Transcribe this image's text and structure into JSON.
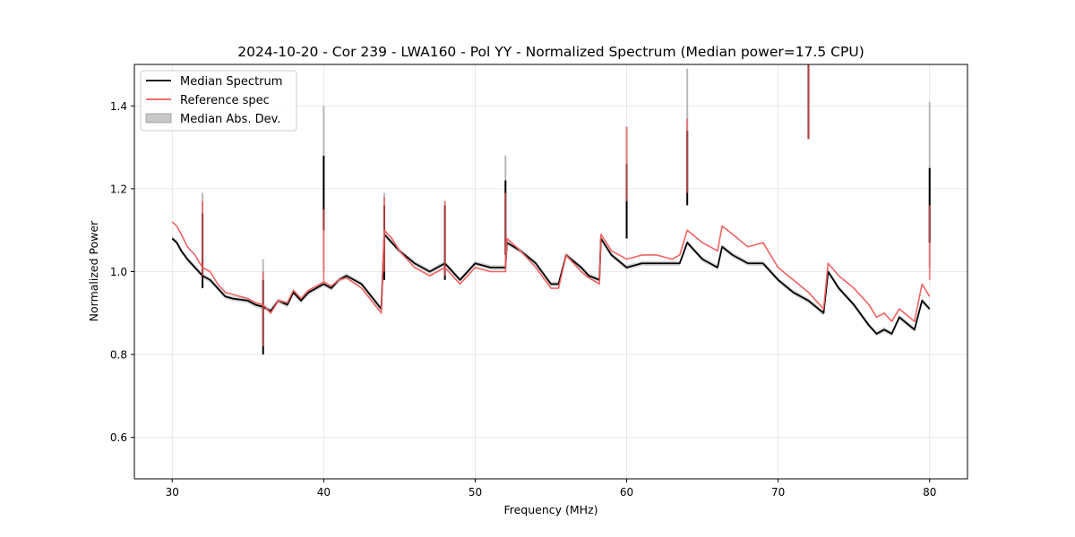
{
  "chart_data": {
    "type": "line",
    "title": "2024-10-20 - Cor 239 - LWA160 - Pol YY - Normalized Spectrum (Median power=17.5 CPU)",
    "xlabel": "Frequency (MHz)",
    "ylabel": "Normalized Power",
    "xlim": [
      27.5,
      82.5
    ],
    "ylim": [
      0.5,
      1.5
    ],
    "xticks": [
      30,
      40,
      50,
      60,
      70,
      80
    ],
    "yticks": [
      0.6,
      0.8,
      1.0,
      1.2,
      1.4
    ],
    "grid": true,
    "legend_position": "upper-left",
    "legend": [
      "Median Spectrum",
      "Reference spec",
      "Median Abs. Dev."
    ],
    "series": [
      {
        "name": "Median Spectrum",
        "color": "#000000",
        "points": [
          [
            30.0,
            1.08
          ],
          [
            30.3,
            1.07
          ],
          [
            30.6,
            1.05
          ],
          [
            31.0,
            1.03
          ],
          [
            31.5,
            1.01
          ],
          [
            32.0,
            0.99
          ],
          [
            32.5,
            0.98
          ],
          [
            33.0,
            0.96
          ],
          [
            33.5,
            0.94
          ],
          [
            34.0,
            0.935
          ],
          [
            35.0,
            0.93
          ],
          [
            35.5,
            0.92
          ],
          [
            36.0,
            0.915
          ],
          [
            36.5,
            0.905
          ],
          [
            37.0,
            0.93
          ],
          [
            37.6,
            0.92
          ],
          [
            38.0,
            0.95
          ],
          [
            38.5,
            0.93
          ],
          [
            39.0,
            0.95
          ],
          [
            40.0,
            0.97
          ],
          [
            40.5,
            0.96
          ],
          [
            41.0,
            0.98
          ],
          [
            41.5,
            0.99
          ],
          [
            42.5,
            0.97
          ],
          [
            43.8,
            0.91
          ],
          [
            44.0,
            1.09
          ],
          [
            44.5,
            1.07
          ],
          [
            45.0,
            1.05
          ],
          [
            46.0,
            1.02
          ],
          [
            47.0,
            1.0
          ],
          [
            48.0,
            1.02
          ],
          [
            48.5,
            1.0
          ],
          [
            49.0,
            0.98
          ],
          [
            50.0,
            1.02
          ],
          [
            51.0,
            1.01
          ],
          [
            52.0,
            1.01
          ],
          [
            52.1,
            1.07
          ],
          [
            53.0,
            1.05
          ],
          [
            54.0,
            1.02
          ],
          [
            55.0,
            0.97
          ],
          [
            55.5,
            0.97
          ],
          [
            56.0,
            1.04
          ],
          [
            57.0,
            1.01
          ],
          [
            57.5,
            0.99
          ],
          [
            58.2,
            0.98
          ],
          [
            58.3,
            1.08
          ],
          [
            59.0,
            1.04
          ],
          [
            60.0,
            1.01
          ],
          [
            61.0,
            1.02
          ],
          [
            62.0,
            1.02
          ],
          [
            63.0,
            1.02
          ],
          [
            63.5,
            1.02
          ],
          [
            64.0,
            1.07
          ],
          [
            65.0,
            1.03
          ],
          [
            66.0,
            1.01
          ],
          [
            66.3,
            1.06
          ],
          [
            67.0,
            1.04
          ],
          [
            68.0,
            1.02
          ],
          [
            69.0,
            1.02
          ],
          [
            70.0,
            0.98
          ],
          [
            71.0,
            0.95
          ],
          [
            72.0,
            0.93
          ],
          [
            73.0,
            0.9
          ],
          [
            73.3,
            1.0
          ],
          [
            74.0,
            0.96
          ],
          [
            75.0,
            0.92
          ],
          [
            76.0,
            0.87
          ],
          [
            76.5,
            0.85
          ],
          [
            77.0,
            0.86
          ],
          [
            77.5,
            0.85
          ],
          [
            78.0,
            0.89
          ],
          [
            79.0,
            0.86
          ],
          [
            79.5,
            0.93
          ],
          [
            80.0,
            0.91
          ]
        ]
      },
      {
        "name": "Reference spec",
        "color": "#f05a5a",
        "points": [
          [
            30.0,
            1.12
          ],
          [
            30.3,
            1.11
          ],
          [
            30.6,
            1.09
          ],
          [
            31.0,
            1.06
          ],
          [
            31.5,
            1.04
          ],
          [
            32.0,
            1.01
          ],
          [
            32.5,
            1.0
          ],
          [
            33.0,
            0.97
          ],
          [
            33.5,
            0.95
          ],
          [
            34.0,
            0.945
          ],
          [
            35.0,
            0.935
          ],
          [
            35.5,
            0.925
          ],
          [
            36.0,
            0.92
          ],
          [
            36.5,
            0.9
          ],
          [
            37.0,
            0.93
          ],
          [
            37.6,
            0.925
          ],
          [
            38.0,
            0.955
          ],
          [
            38.5,
            0.935
          ],
          [
            39.0,
            0.955
          ],
          [
            40.0,
            0.975
          ],
          [
            40.5,
            0.965
          ],
          [
            41.0,
            0.98
          ],
          [
            41.5,
            0.985
          ],
          [
            42.5,
            0.96
          ],
          [
            43.8,
            0.9
          ],
          [
            44.0,
            1.1
          ],
          [
            44.5,
            1.08
          ],
          [
            45.0,
            1.05
          ],
          [
            46.0,
            1.01
          ],
          [
            47.0,
            0.99
          ],
          [
            48.0,
            1.01
          ],
          [
            48.5,
            0.99
          ],
          [
            49.0,
            0.97
          ],
          [
            50.0,
            1.01
          ],
          [
            51.0,
            1.0
          ],
          [
            52.0,
            1.0
          ],
          [
            52.1,
            1.08
          ],
          [
            53.0,
            1.05
          ],
          [
            54.0,
            1.01
          ],
          [
            55.0,
            0.96
          ],
          [
            55.5,
            0.96
          ],
          [
            56.0,
            1.04
          ],
          [
            57.0,
            1.0
          ],
          [
            57.5,
            0.985
          ],
          [
            58.2,
            0.97
          ],
          [
            58.3,
            1.09
          ],
          [
            59.0,
            1.05
          ],
          [
            60.0,
            1.03
          ],
          [
            61.0,
            1.04
          ],
          [
            62.0,
            1.04
          ],
          [
            63.0,
            1.03
          ],
          [
            63.5,
            1.04
          ],
          [
            64.0,
            1.1
          ],
          [
            65.0,
            1.07
          ],
          [
            66.0,
            1.05
          ],
          [
            66.3,
            1.11
          ],
          [
            67.0,
            1.09
          ],
          [
            68.0,
            1.06
          ],
          [
            69.0,
            1.07
          ],
          [
            70.0,
            1.01
          ],
          [
            71.0,
            0.98
          ],
          [
            72.0,
            0.95
          ],
          [
            73.0,
            0.91
          ],
          [
            73.3,
            1.02
          ],
          [
            74.0,
            0.99
          ],
          [
            75.0,
            0.96
          ],
          [
            76.0,
            0.92
          ],
          [
            76.5,
            0.89
          ],
          [
            77.0,
            0.9
          ],
          [
            77.5,
            0.88
          ],
          [
            78.0,
            0.91
          ],
          [
            79.0,
            0.88
          ],
          [
            79.5,
            0.97
          ],
          [
            80.0,
            0.94
          ]
        ]
      }
    ],
    "spikes": [
      {
        "x": 32.0,
        "median": 1.14,
        "reference": 1.17,
        "mad_top": 1.19
      },
      {
        "x": 36.0,
        "median": 0.98,
        "reference": 1.0,
        "mad_top": 1.03
      },
      {
        "x": 40.0,
        "median": 1.28,
        "reference": 1.15,
        "mad_top": 1.4
      },
      {
        "x": 44.0,
        "median": 1.16,
        "reference": 1.18,
        "mad_top": 1.19
      },
      {
        "x": 48.0,
        "median": 1.16,
        "reference": 1.17,
        "mad_top": 1.17
      },
      {
        "x": 52.0,
        "median": 1.22,
        "reference": 1.19,
        "mad_top": 1.28
      },
      {
        "x": 60.0,
        "median": 1.26,
        "reference": 1.35,
        "mad_top": 1.35
      },
      {
        "x": 64.0,
        "median": 1.34,
        "reference": 1.37,
        "mad_top": 1.49
      },
      {
        "x": 72.0,
        "median": 1.5,
        "reference": 1.5,
        "mad_top": 1.5
      },
      {
        "x": 80.0,
        "median": 1.25,
        "reference": 1.16,
        "mad_top": 1.41
      }
    ],
    "mad_band_halfwidth": 0.006
  }
}
